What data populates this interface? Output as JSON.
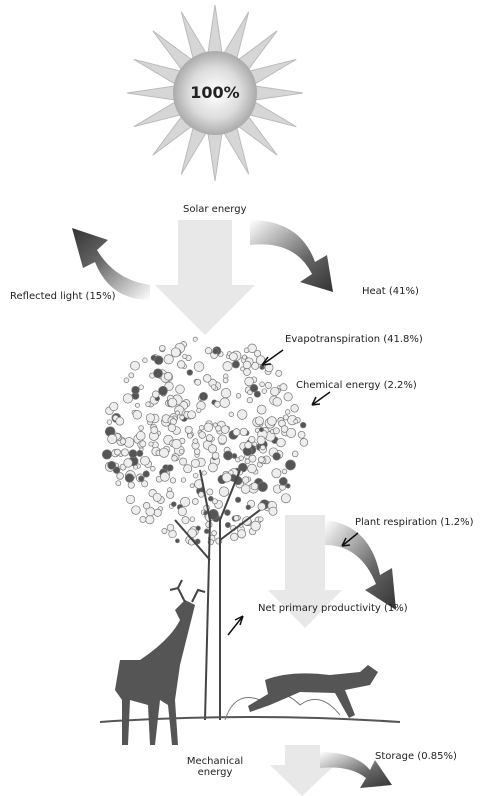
{
  "sun_label": "100%",
  "labels": {
    "solar_energy": "Solar energy",
    "reflected_light": "Reflected light (15%)",
    "heat": "Heat (41%)",
    "evapotranspiration": "Evapotranspiration (41.8%)",
    "chemical_energy": "Chemical energy (2.2%)",
    "plant_respiration": "Plant respiration (1.2%)",
    "net_primary_productivity": "Net primary productivity (1%)",
    "storage": "Storage (0.85%)",
    "mechanical_energy": "Mechanical energy"
  }
}
